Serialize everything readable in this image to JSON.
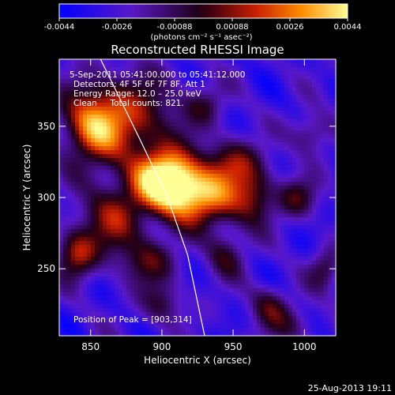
{
  "colorbar": {
    "ticks": [
      "-0.0044",
      "-0.0026",
      "-0.00088",
      "0.00088",
      "0.0026",
      "0.0044"
    ],
    "units": "(photons cm⁻² s⁻¹ asec⁻²)",
    "range": [
      -0.0044,
      0.0044
    ]
  },
  "chart_data": {
    "type": "heatmap",
    "title": "Reconstructed RHESSI Image",
    "xlabel": "Heliocentric X (arcsec)",
    "ylabel": "Heliocentric Y (arcsec)",
    "xlim": [
      828,
      1022
    ],
    "ylim": [
      203,
      397
    ],
    "x_ticks": [
      850,
      900,
      950,
      1000
    ],
    "y_ticks": [
      250,
      300,
      350
    ],
    "info_lines": [
      "5-Sep-2011 05:41:00.000 to 05:41:12.000",
      "Detectors: 4F 5F 6F 7F 8F, Att 1",
      "Energy Range: 12.0 – 25.0 keV",
      "Clean     Total counts: 821."
    ],
    "peak_label": "Position of Peak = [903,314]",
    "peak": [
      903,
      314
    ],
    "sources": [
      {
        "x": 903,
        "y": 314,
        "amp": 1.0,
        "sx": 16,
        "sy": 14
      },
      {
        "x": 925,
        "y": 300,
        "amp": 0.85,
        "sx": 22,
        "sy": 14
      },
      {
        "x": 875,
        "y": 355,
        "amp": 0.6,
        "sx": 25,
        "sy": 22
      },
      {
        "x": 850,
        "y": 350,
        "amp": 0.55,
        "sx": 14,
        "sy": 18
      },
      {
        "x": 840,
        "y": 260,
        "amp": 0.55,
        "sx": 10,
        "sy": 12
      },
      {
        "x": 865,
        "y": 285,
        "amp": 0.5,
        "sx": 16,
        "sy": 18
      },
      {
        "x": 890,
        "y": 255,
        "amp": 0.4,
        "sx": 14,
        "sy": 12
      },
      {
        "x": 900,
        "y": 225,
        "amp": 0.35,
        "sx": 10,
        "sy": 10
      },
      {
        "x": 945,
        "y": 260,
        "amp": 0.35,
        "sx": 10,
        "sy": 12
      },
      {
        "x": 950,
        "y": 325,
        "amp": 0.45,
        "sx": 14,
        "sy": 12
      },
      {
        "x": 965,
        "y": 300,
        "amp": 0.4,
        "sx": 10,
        "sy": 14
      },
      {
        "x": 995,
        "y": 300,
        "amp": 0.4,
        "sx": 10,
        "sy": 10
      },
      {
        "x": 1015,
        "y": 250,
        "amp": 0.35,
        "sx": 8,
        "sy": 10
      },
      {
        "x": 975,
        "y": 225,
        "amp": 0.35,
        "sx": 10,
        "sy": 10
      },
      {
        "x": 1005,
        "y": 345,
        "amp": 0.35,
        "sx": 10,
        "sy": 10
      },
      {
        "x": 930,
        "y": 365,
        "amp": 0.3,
        "sx": 10,
        "sy": 10
      },
      {
        "x": 990,
        "y": 210,
        "amp": 0.25,
        "sx": 14,
        "sy": 10
      }
    ],
    "limb": [
      [
        857,
        397
      ],
      [
        885,
        340
      ],
      [
        904,
        300
      ],
      [
        918,
        260
      ],
      [
        930,
        203
      ]
    ]
  },
  "footer": {
    "timestamp": "25-Aug-2013 19:11"
  }
}
